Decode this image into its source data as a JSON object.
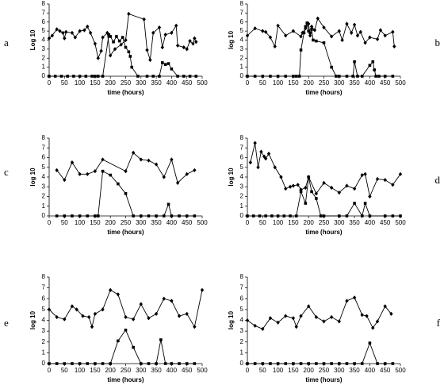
{
  "chart_data": [
    {
      "type": "line",
      "panel": "a",
      "ylabel": "Log 10",
      "xlabel": "time (hours)",
      "xlim": [
        0,
        500
      ],
      "ylim": [
        0,
        8
      ],
      "xticks": [
        0,
        50,
        100,
        150,
        200,
        250,
        300,
        350,
        400,
        450,
        500
      ],
      "yticks": [
        0,
        1,
        2,
        3,
        4,
        5,
        6,
        7,
        8
      ],
      "series": [
        {
          "color": "#000000",
          "marker": "diamond",
          "x": [
            0,
            10,
            25,
            35,
            45,
            50,
            55,
            75,
            85,
            100,
            115,
            125,
            135,
            150,
            160,
            170,
            175,
            190,
            200,
            215,
            235,
            250,
            260,
            310,
            320,
            330,
            340,
            360,
            370,
            380,
            400,
            415,
            420,
            440,
            450,
            460,
            470,
            475,
            480
          ],
          "values": [
            4.2,
            4.5,
            5.2,
            5,
            4.8,
            4.2,
            4.9,
            4.8,
            4.3,
            5,
            5.1,
            5.5,
            4.8,
            3.6,
            2,
            2.8,
            4.3,
            4.8,
            2.3,
            3,
            3.5,
            4,
            6.9,
            6.3,
            2.9,
            1.8,
            4.8,
            5.4,
            3.2,
            4.6,
            4.8,
            5.6,
            3.4,
            3.2,
            3,
            3.9,
            3.6,
            4.2,
            3.8
          ]
        },
        {
          "color": "#000000",
          "marker": "square",
          "x": [
            0,
            20,
            40,
            60,
            80,
            100,
            120,
            140,
            150,
            160,
            175,
            195,
            200,
            210,
            220,
            230,
            240,
            250,
            260,
            265,
            270,
            290,
            320,
            340,
            360,
            370,
            380,
            390,
            400,
            420,
            440,
            460,
            480
          ],
          "values": [
            0,
            0,
            0,
            0,
            0,
            0,
            0,
            0,
            0,
            0,
            0,
            4.6,
            4.4,
            3.8,
            4.4,
            3.9,
            4.3,
            3.2,
            2.7,
            2.2,
            1,
            0,
            0,
            0,
            0,
            1.5,
            1.3,
            1.4,
            0.8,
            0,
            0,
            0,
            0
          ]
        }
      ]
    },
    {
      "type": "line",
      "panel": "b",
      "ylabel": "log 10",
      "xlabel": "time (hours)",
      "xlim": [
        0,
        500
      ],
      "ylim": [
        0,
        8
      ],
      "xticks": [
        0,
        50,
        100,
        150,
        200,
        250,
        300,
        350,
        400,
        450,
        500
      ],
      "yticks": [
        0,
        1,
        2,
        3,
        4,
        5,
        6,
        7,
        8
      ],
      "series": [
        {
          "color": "#000000",
          "marker": "diamond",
          "x": [
            0,
            25,
            50,
            60,
            75,
            90,
            100,
            125,
            150,
            175,
            180,
            190,
            200,
            205,
            210,
            220,
            230,
            250,
            275,
            300,
            310,
            325,
            340,
            350,
            360,
            370,
            385,
            400,
            425,
            435,
            450,
            475,
            480
          ],
          "values": [
            4.5,
            5.3,
            5,
            4.9,
            4.3,
            3.3,
            5.6,
            4.5,
            5,
            4.4,
            4.8,
            5.3,
            5.8,
            4.5,
            5.5,
            5.1,
            6.4,
            5.4,
            4.4,
            5,
            4,
            5.8,
            4.8,
            5.7,
            4.5,
            4.9,
            3.7,
            4.3,
            4.1,
            5.1,
            4.5,
            4.9,
            3.3
          ]
        },
        {
          "color": "#000000",
          "marker": "square",
          "x": [
            0,
            25,
            50,
            75,
            100,
            125,
            150,
            160,
            170,
            175,
            185,
            190,
            195,
            200,
            205,
            210,
            215,
            225,
            250,
            275,
            290,
            300,
            325,
            345,
            350,
            360,
            375,
            400,
            410,
            415,
            420,
            430,
            450,
            475
          ],
          "values": [
            0,
            0,
            0,
            0,
            0,
            0,
            0,
            0,
            0,
            2.9,
            4.8,
            5.5,
            5.9,
            5,
            4.8,
            5.2,
            4,
            3.9,
            3.7,
            1,
            0,
            0,
            0,
            0,
            1.6,
            0,
            0,
            1.2,
            1.6,
            0.7,
            0,
            0,
            0,
            0
          ]
        }
      ]
    },
    {
      "type": "line",
      "panel": "c",
      "ylabel": "log 10",
      "xlabel": "time (hours)",
      "xlim": [
        0,
        500
      ],
      "ylim": [
        0,
        8
      ],
      "xticks": [
        0,
        50,
        100,
        150,
        200,
        250,
        300,
        350,
        400,
        450,
        500
      ],
      "yticks": [
        0,
        1,
        2,
        3,
        4,
        5,
        6,
        7,
        8
      ],
      "series": [
        {
          "color": "#000000",
          "marker": "diamond",
          "x": [
            25,
            50,
            75,
            100,
            125,
            150,
            175,
            250,
            275,
            300,
            325,
            350,
            375,
            400,
            420,
            450,
            475
          ],
          "values": [
            4.7,
            3.7,
            5.5,
            4.3,
            4.3,
            4.6,
            5.8,
            4.6,
            6.5,
            5.8,
            5.7,
            5.3,
            4,
            5.8,
            3.4,
            4.3,
            4.7
          ]
        },
        {
          "color": "#000000",
          "marker": "square",
          "x": [
            25,
            50,
            75,
            100,
            125,
            150,
            160,
            175,
            200,
            225,
            250,
            275,
            300,
            325,
            350,
            375,
            390,
            400,
            425,
            450,
            475
          ],
          "values": [
            0,
            0,
            0,
            0,
            0,
            0,
            0,
            4.6,
            4.2,
            3.3,
            2.3,
            0,
            0,
            0,
            0,
            0,
            1.2,
            0,
            0,
            0,
            0
          ]
        }
      ]
    },
    {
      "type": "line",
      "panel": "d",
      "ylabel": "log 10",
      "xlabel": "time (hours)",
      "xlim": [
        0,
        500
      ],
      "ylim": [
        0,
        8
      ],
      "xticks": [
        0,
        50,
        100,
        150,
        200,
        250,
        300,
        350,
        400,
        450,
        500
      ],
      "yticks": [
        0,
        1,
        2,
        3,
        4,
        5,
        6,
        7,
        8
      ],
      "series": [
        {
          "color": "#000000",
          "marker": "diamond",
          "x": [
            10,
            25,
            35,
            45,
            55,
            60,
            70,
            90,
            110,
            125,
            140,
            150,
            165,
            175,
            190,
            200,
            225,
            250,
            275,
            300,
            325,
            350,
            375,
            385,
            400,
            425,
            450,
            475,
            500
          ],
          "values": [
            5.5,
            7.5,
            5,
            6.6,
            6.1,
            5.9,
            6.4,
            5,
            4,
            2.8,
            3,
            3.1,
            3.2,
            2.7,
            2.9,
            4,
            2.3,
            3.4,
            2.9,
            2.4,
            3.1,
            2.8,
            4.2,
            4.3,
            2,
            3.8,
            3.7,
            3.2,
            4.3
          ]
        },
        {
          "color": "#000000",
          "marker": "square",
          "x": [
            0,
            20,
            40,
            60,
            80,
            100,
            120,
            140,
            160,
            175,
            190,
            200,
            210,
            225,
            240,
            250,
            300,
            325,
            350,
            375,
            385,
            400,
            450,
            475,
            500
          ],
          "values": [
            0,
            0,
            0,
            0,
            0,
            0,
            0,
            0,
            0,
            2.5,
            1.3,
            4,
            2.5,
            1.8,
            0,
            0,
            0,
            0,
            1.3,
            0,
            1.3,
            0,
            0,
            0,
            0
          ]
        }
      ]
    },
    {
      "type": "line",
      "panel": "e",
      "ylabel": "log 10",
      "xlabel": "time (hours)",
      "xlim": [
        0,
        500
      ],
      "ylim": [
        0,
        8
      ],
      "xticks": [
        0,
        50,
        100,
        150,
        200,
        250,
        300,
        350,
        400,
        450,
        500
      ],
      "yticks": [
        0,
        1,
        2,
        3,
        4,
        5,
        6,
        7,
        8
      ],
      "series": [
        {
          "color": "#000000",
          "marker": "diamond",
          "x": [
            0,
            25,
            50,
            75,
            90,
            110,
            130,
            140,
            150,
            175,
            200,
            225,
            250,
            275,
            300,
            325,
            350,
            375,
            400,
            425,
            450,
            475,
            500
          ],
          "values": [
            5,
            4.3,
            4.1,
            5.3,
            5,
            4.4,
            4.3,
            3.4,
            4.6,
            5,
            6.8,
            6.4,
            4.3,
            4.1,
            5.5,
            4.2,
            4.6,
            6,
            5.8,
            4.4,
            4.6,
            3.4,
            6.8
          ]
        },
        {
          "color": "#000000",
          "marker": "square",
          "x": [
            0,
            25,
            50,
            75,
            100,
            125,
            150,
            175,
            200,
            225,
            250,
            275,
            300,
            325,
            350,
            365,
            380,
            400,
            425,
            450,
            475
          ],
          "values": [
            0,
            0,
            0,
            0,
            0,
            0,
            0,
            0,
            0,
            2.1,
            3.1,
            1.5,
            0,
            0,
            0,
            2.2,
            0,
            0,
            0,
            0,
            0
          ]
        }
      ]
    },
    {
      "type": "line",
      "panel": "f",
      "ylabel": "log 10",
      "xlabel": "time (hours)",
      "xlim": [
        0,
        500
      ],
      "ylim": [
        0,
        8
      ],
      "xticks": [
        0,
        50,
        100,
        150,
        200,
        250,
        300,
        350,
        400,
        450,
        500
      ],
      "yticks": [
        0,
        1,
        2,
        3,
        4,
        5,
        6,
        7,
        8
      ],
      "series": [
        {
          "color": "#000000",
          "marker": "diamond",
          "x": [
            0,
            25,
            50,
            75,
            100,
            125,
            150,
            160,
            175,
            200,
            225,
            250,
            275,
            300,
            325,
            350,
            375,
            390,
            410,
            425,
            450,
            470
          ],
          "values": [
            4,
            3.5,
            3.2,
            4.2,
            3.8,
            4.4,
            4.2,
            3.4,
            4.4,
            5.3,
            4.3,
            3.9,
            4.3,
            3.9,
            5.8,
            6.1,
            4.5,
            4.4,
            3.3,
            3.9,
            5.3,
            4.6
          ]
        },
        {
          "color": "#000000",
          "marker": "square",
          "x": [
            0,
            25,
            50,
            75,
            100,
            125,
            150,
            175,
            200,
            225,
            250,
            275,
            300,
            325,
            350,
            375,
            400,
            425,
            450,
            475
          ],
          "values": [
            0,
            0,
            0,
            0,
            0,
            0,
            0,
            0,
            0,
            0,
            0,
            0,
            0,
            0,
            0,
            0,
            1.9,
            0,
            0,
            0
          ]
        }
      ]
    }
  ]
}
